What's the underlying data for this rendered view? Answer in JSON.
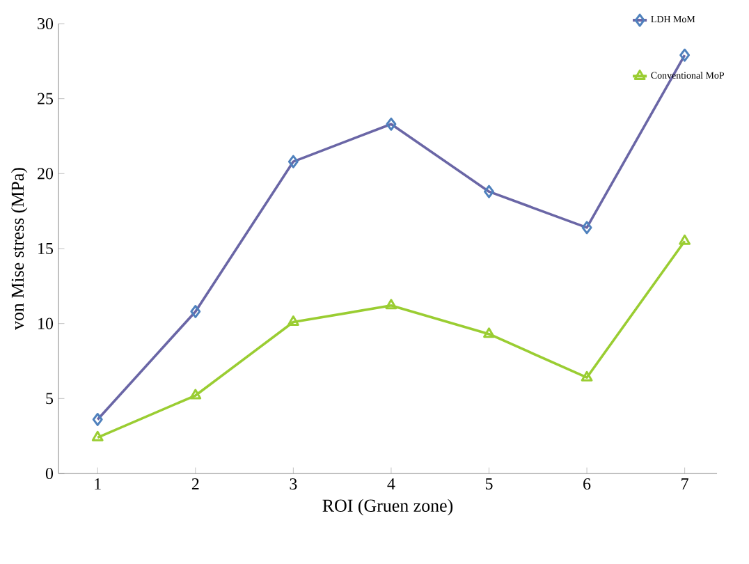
{
  "chart_data": {
    "type": "line",
    "xlabel": "ROI (Gruen zone)",
    "ylabel": "von Mise stress (MPa)",
    "categories": [
      "1",
      "2",
      "3",
      "4",
      "5",
      "6",
      "7"
    ],
    "series": [
      {
        "name": "LDH MoM",
        "color": "#6a66a6",
        "marker": "diamond",
        "values": [
          3.6,
          10.8,
          20.8,
          23.3,
          18.8,
          16.4,
          27.9
        ]
      },
      {
        "name": "Conventional MoP",
        "color": "#9acd32",
        "marker": "triangle",
        "values": [
          2.4,
          5.2,
          10.1,
          11.2,
          9.3,
          6.4,
          15.5
        ]
      }
    ],
    "ylim": [
      0,
      30
    ],
    "yticks": [
      0,
      5,
      10,
      15,
      20,
      25,
      30
    ],
    "legend": "top right",
    "grid": false
  }
}
